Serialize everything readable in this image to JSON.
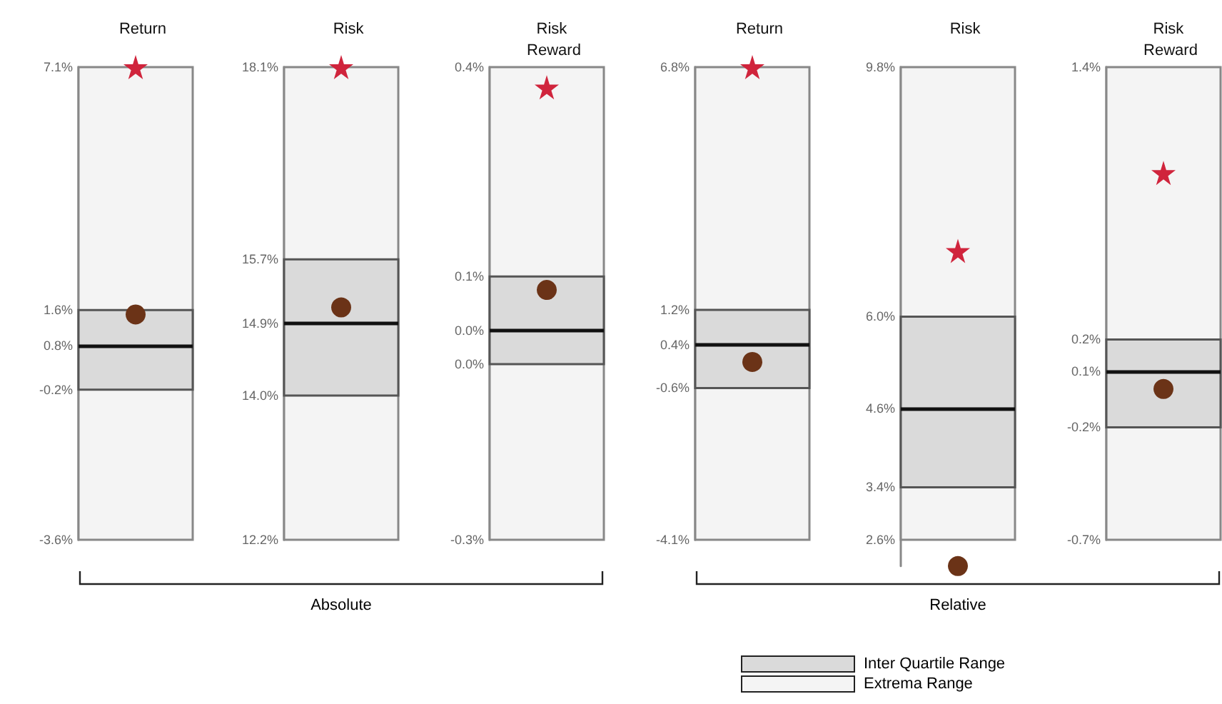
{
  "chart_data": [
    {
      "type": "bar",
      "title": "Return",
      "categories": [
        null
      ],
      "tick_labels": "y",
      "ylim": [
        -3.6,
        7.1
      ],
      "yticks": [
        {
          "value": 7.1,
          "label": "7.1%"
        },
        {
          "value": 1.6,
          "label": "1.6%"
        },
        {
          "value": 0.8,
          "label": "0.8%"
        },
        {
          "value": -0.2,
          "label": "-0.2%"
        },
        {
          "value": -3.6,
          "label": "-3.6%"
        }
      ],
      "ref_lines": [
        {
          "axis": "y",
          "value": 0.8,
          "color": "#111111"
        }
      ],
      "bands": [
        {
          "axis": "y",
          "from": -3.6,
          "to": 7.1,
          "color": "#f4f4f4"
        }
      ],
      "series": [
        {
          "color": "#dadada",
          "base": [
            -0.2
          ],
          "values": [
            1.8
          ]
        },
        {
          "type": "scatter",
          "marker": "star",
          "color": "#d0243c",
          "values": [
            7.1
          ]
        },
        {
          "type": "scatter",
          "marker": "circle",
          "color": "#6b3317",
          "values": [
            1.5
          ]
        }
      ]
    },
    {
      "type": "bar",
      "title": "Risk",
      "categories": [
        null
      ],
      "tick_labels": "y",
      "ylim": [
        12.2,
        18.1
      ],
      "yticks": [
        {
          "value": 18.1,
          "label": "18.1%"
        },
        {
          "value": 15.7,
          "label": "15.7%"
        },
        {
          "value": 14.9,
          "label": "14.9%"
        },
        {
          "value": 14.0,
          "label": "14.0%"
        },
        {
          "value": 12.2,
          "label": "12.2%"
        }
      ],
      "ref_lines": [
        {
          "axis": "y",
          "value": 14.9,
          "color": "#111111"
        }
      ],
      "bands": [
        {
          "axis": "y",
          "from": 12.2,
          "to": 18.1,
          "color": "#f4f4f4"
        }
      ],
      "annotations": [
        "Absolute"
      ],
      "series": [
        {
          "color": "#dadada",
          "base": [
            14.0
          ],
          "values": [
            1.7
          ]
        },
        {
          "type": "scatter",
          "marker": "star",
          "color": "#d0243c",
          "values": [
            18.1
          ]
        },
        {
          "type": "scatter",
          "marker": "circle",
          "color": "#6b3317",
          "values": [
            15.1
          ]
        }
      ]
    },
    {
      "type": "bar",
      "title": "Risk Reward",
      "categories": [
        null
      ],
      "tick_labels": "y",
      "ylim": [
        -0.3,
        0.4
      ],
      "yticks": [
        {
          "value": 0.4,
          "label": "0.4%"
        },
        {
          "value": 0.09,
          "label": "0.1%"
        },
        {
          "value": 0.01,
          "label": "0.0%"
        },
        {
          "value": -0.04,
          "label": "0.0%"
        },
        {
          "value": -0.3,
          "label": "-0.3%"
        }
      ],
      "ref_lines": [
        {
          "axis": "y",
          "value": 0.01,
          "color": "#111111"
        }
      ],
      "bands": [
        {
          "axis": "y",
          "from": -0.3,
          "to": 0.4,
          "color": "#f4f4f4"
        }
      ],
      "series": [
        {
          "color": "#dadada",
          "base": [
            -0.04
          ],
          "values": [
            0.13
          ]
        },
        {
          "type": "scatter",
          "marker": "star",
          "color": "#d0243c",
          "values": [
            0.37
          ]
        },
        {
          "type": "scatter",
          "marker": "circle",
          "color": "#6b3317",
          "values": [
            0.07
          ]
        }
      ]
    },
    {
      "type": "bar",
      "title": "Return",
      "categories": [
        null
      ],
      "tick_labels": "y",
      "ylim": [
        -4.1,
        6.8
      ],
      "yticks": [
        {
          "value": 6.8,
          "label": "6.8%"
        },
        {
          "value": 1.2,
          "label": "1.2%"
        },
        {
          "value": 0.4,
          "label": "0.4%"
        },
        {
          "value": -0.6,
          "label": "-0.6%"
        },
        {
          "value": -4.1,
          "label": "-4.1%"
        }
      ],
      "ref_lines": [
        {
          "axis": "y",
          "value": 0.4,
          "color": "#111111"
        }
      ],
      "bands": [
        {
          "axis": "y",
          "from": -4.1,
          "to": 6.8,
          "color": "#f4f4f4"
        }
      ],
      "series": [
        {
          "color": "#dadada",
          "base": [
            -0.6
          ],
          "values": [
            1.8
          ]
        },
        {
          "type": "scatter",
          "marker": "star",
          "color": "#d0243c",
          "values": [
            6.8
          ]
        },
        {
          "type": "scatter",
          "marker": "circle",
          "color": "#6b3317",
          "values": [
            0.0
          ]
        }
      ]
    },
    {
      "type": "bar",
      "title": "Risk",
      "categories": [
        null
      ],
      "tick_labels": "y",
      "ylim": [
        2.2,
        9.8
      ],
      "yticks": [
        {
          "value": 9.8,
          "label": "9.8%"
        },
        {
          "value": 6.0,
          "label": "6.0%"
        },
        {
          "value": 4.6,
          "label": "4.6%"
        },
        {
          "value": 3.4,
          "label": "3.4%"
        },
        {
          "value": 2.6,
          "label": "2.6%"
        }
      ],
      "ref_lines": [
        {
          "axis": "y",
          "value": 4.6,
          "color": "#111111"
        }
      ],
      "bands": [
        {
          "axis": "y",
          "from": 2.6,
          "to": 9.8,
          "color": "#f4f4f4"
        }
      ],
      "annotations": [
        "Relative"
      ],
      "series": [
        {
          "color": "#dadada",
          "base": [
            3.4
          ],
          "values": [
            2.6
          ]
        },
        {
          "type": "scatter",
          "marker": "star",
          "color": "#d0243c",
          "values": [
            7.0
          ]
        },
        {
          "type": "scatter",
          "marker": "circle",
          "color": "#6b3317",
          "values": [
            2.2
          ]
        }
      ]
    },
    {
      "type": "bar",
      "title": "Risk Reward",
      "categories": [
        null
      ],
      "tick_labels": "y",
      "ylim": [
        -0.7,
        1.4
      ],
      "yticks": [
        {
          "value": 1.4,
          "label": "1.4%"
        },
        {
          "value": 0.19,
          "label": "0.2%"
        },
        {
          "value": 0.05,
          "label": "0.1%"
        },
        {
          "value": -0.2,
          "label": "-0.2%"
        },
        {
          "value": -0.7,
          "label": "-0.7%"
        }
      ],
      "ref_lines": [
        {
          "axis": "y",
          "value": 0.05,
          "color": "#111111"
        }
      ],
      "bands": [
        {
          "axis": "y",
          "from": -0.7,
          "to": 1.4,
          "color": "#f4f4f4"
        }
      ],
      "series": [
        {
          "color": "#dadada",
          "base": [
            -0.2
          ],
          "values": [
            0.39
          ]
        },
        {
          "type": "scatter",
          "marker": "star",
          "color": "#d0243c",
          "values": [
            0.93
          ]
        },
        {
          "type": "scatter",
          "marker": "circle",
          "color": "#6b3317",
          "values": [
            -0.03
          ]
        }
      ]
    },
    {
      "type": "other",
      "annotations": [
        "Inter Quartile Range",
        "Extrema Range"
      ]
    }
  ]
}
